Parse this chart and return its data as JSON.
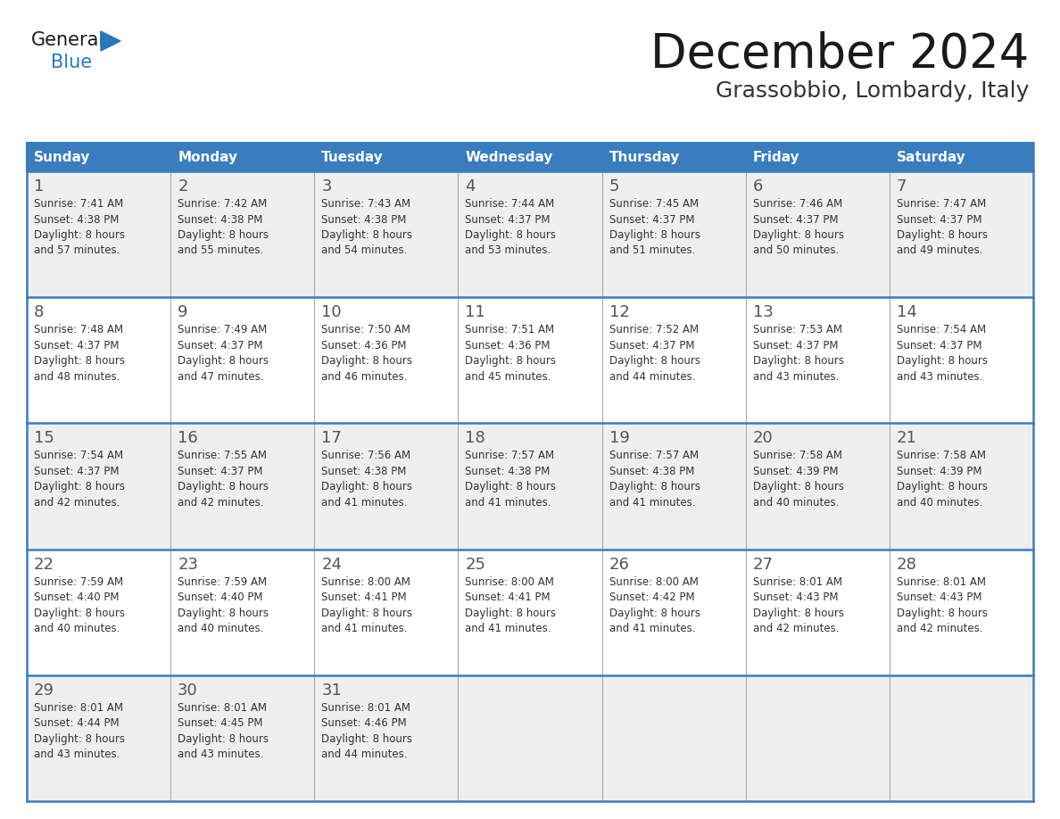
{
  "title": "December 2024",
  "subtitle": "Grassobbio, Lombardy, Italy",
  "days_of_week": [
    "Sunday",
    "Monday",
    "Tuesday",
    "Wednesday",
    "Thursday",
    "Friday",
    "Saturday"
  ],
  "header_bg": "#3a7dbf",
  "header_text": "#ffffff",
  "cell_bg_odd": "#efefef",
  "cell_bg_even": "#ffffff",
  "day_num_color": "#555555",
  "cell_text_color": "#333333",
  "border_color": "#3a7dbf",
  "grid_color": "#aaaaaa",
  "title_color": "#1a1a1a",
  "subtitle_color": "#333333",
  "logo_general_color": "#1a1a1a",
  "logo_blue_color": "#2878c0",
  "weeks": [
    [
      {
        "day": 1,
        "sunrise": "7:41 AM",
        "sunset": "4:38 PM",
        "daylight_hours": 8,
        "daylight_mins": 57
      },
      {
        "day": 2,
        "sunrise": "7:42 AM",
        "sunset": "4:38 PM",
        "daylight_hours": 8,
        "daylight_mins": 55
      },
      {
        "day": 3,
        "sunrise": "7:43 AM",
        "sunset": "4:38 PM",
        "daylight_hours": 8,
        "daylight_mins": 54
      },
      {
        "day": 4,
        "sunrise": "7:44 AM",
        "sunset": "4:37 PM",
        "daylight_hours": 8,
        "daylight_mins": 53
      },
      {
        "day": 5,
        "sunrise": "7:45 AM",
        "sunset": "4:37 PM",
        "daylight_hours": 8,
        "daylight_mins": 51
      },
      {
        "day": 6,
        "sunrise": "7:46 AM",
        "sunset": "4:37 PM",
        "daylight_hours": 8,
        "daylight_mins": 50
      },
      {
        "day": 7,
        "sunrise": "7:47 AM",
        "sunset": "4:37 PM",
        "daylight_hours": 8,
        "daylight_mins": 49
      }
    ],
    [
      {
        "day": 8,
        "sunrise": "7:48 AM",
        "sunset": "4:37 PM",
        "daylight_hours": 8,
        "daylight_mins": 48
      },
      {
        "day": 9,
        "sunrise": "7:49 AM",
        "sunset": "4:37 PM",
        "daylight_hours": 8,
        "daylight_mins": 47
      },
      {
        "day": 10,
        "sunrise": "7:50 AM",
        "sunset": "4:36 PM",
        "daylight_hours": 8,
        "daylight_mins": 46
      },
      {
        "day": 11,
        "sunrise": "7:51 AM",
        "sunset": "4:36 PM",
        "daylight_hours": 8,
        "daylight_mins": 45
      },
      {
        "day": 12,
        "sunrise": "7:52 AM",
        "sunset": "4:37 PM",
        "daylight_hours": 8,
        "daylight_mins": 44
      },
      {
        "day": 13,
        "sunrise": "7:53 AM",
        "sunset": "4:37 PM",
        "daylight_hours": 8,
        "daylight_mins": 43
      },
      {
        "day": 14,
        "sunrise": "7:54 AM",
        "sunset": "4:37 PM",
        "daylight_hours": 8,
        "daylight_mins": 43
      }
    ],
    [
      {
        "day": 15,
        "sunrise": "7:54 AM",
        "sunset": "4:37 PM",
        "daylight_hours": 8,
        "daylight_mins": 42
      },
      {
        "day": 16,
        "sunrise": "7:55 AM",
        "sunset": "4:37 PM",
        "daylight_hours": 8,
        "daylight_mins": 42
      },
      {
        "day": 17,
        "sunrise": "7:56 AM",
        "sunset": "4:38 PM",
        "daylight_hours": 8,
        "daylight_mins": 41
      },
      {
        "day": 18,
        "sunrise": "7:57 AM",
        "sunset": "4:38 PM",
        "daylight_hours": 8,
        "daylight_mins": 41
      },
      {
        "day": 19,
        "sunrise": "7:57 AM",
        "sunset": "4:38 PM",
        "daylight_hours": 8,
        "daylight_mins": 41
      },
      {
        "day": 20,
        "sunrise": "7:58 AM",
        "sunset": "4:39 PM",
        "daylight_hours": 8,
        "daylight_mins": 40
      },
      {
        "day": 21,
        "sunrise": "7:58 AM",
        "sunset": "4:39 PM",
        "daylight_hours": 8,
        "daylight_mins": 40
      }
    ],
    [
      {
        "day": 22,
        "sunrise": "7:59 AM",
        "sunset": "4:40 PM",
        "daylight_hours": 8,
        "daylight_mins": 40
      },
      {
        "day": 23,
        "sunrise": "7:59 AM",
        "sunset": "4:40 PM",
        "daylight_hours": 8,
        "daylight_mins": 40
      },
      {
        "day": 24,
        "sunrise": "8:00 AM",
        "sunset": "4:41 PM",
        "daylight_hours": 8,
        "daylight_mins": 41
      },
      {
        "day": 25,
        "sunrise": "8:00 AM",
        "sunset": "4:41 PM",
        "daylight_hours": 8,
        "daylight_mins": 41
      },
      {
        "day": 26,
        "sunrise": "8:00 AM",
        "sunset": "4:42 PM",
        "daylight_hours": 8,
        "daylight_mins": 41
      },
      {
        "day": 27,
        "sunrise": "8:01 AM",
        "sunset": "4:43 PM",
        "daylight_hours": 8,
        "daylight_mins": 42
      },
      {
        "day": 28,
        "sunrise": "8:01 AM",
        "sunset": "4:43 PM",
        "daylight_hours": 8,
        "daylight_mins": 42
      }
    ],
    [
      {
        "day": 29,
        "sunrise": "8:01 AM",
        "sunset": "4:44 PM",
        "daylight_hours": 8,
        "daylight_mins": 43
      },
      {
        "day": 30,
        "sunrise": "8:01 AM",
        "sunset": "4:45 PM",
        "daylight_hours": 8,
        "daylight_mins": 43
      },
      {
        "day": 31,
        "sunrise": "8:01 AM",
        "sunset": "4:46 PM",
        "daylight_hours": 8,
        "daylight_mins": 44
      },
      null,
      null,
      null,
      null
    ]
  ],
  "fig_width": 11.88,
  "fig_height": 9.18,
  "dpi": 100
}
